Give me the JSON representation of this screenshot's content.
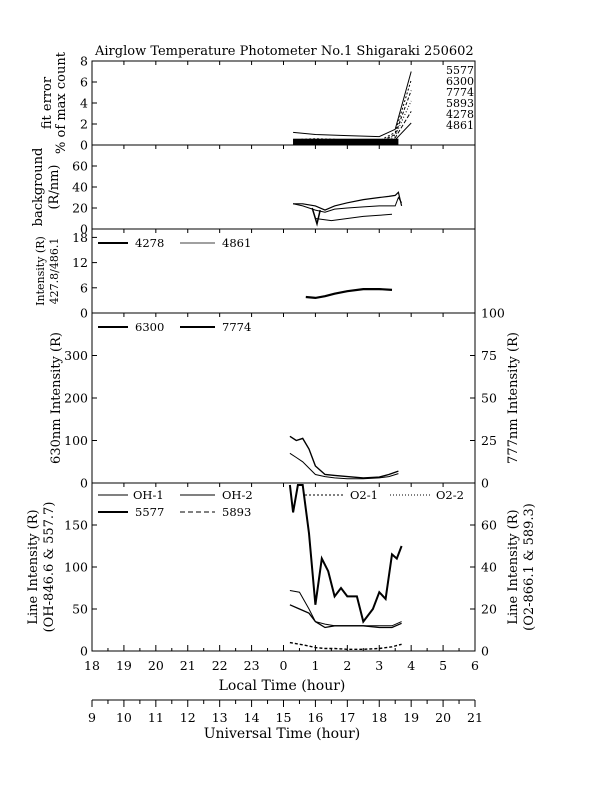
{
  "title": "Airglow Temperature Photometer No.1  Shigaraki  250602",
  "x_axis": {
    "local_label": "Local Time (hour)",
    "local_ticks": [
      "18",
      "19",
      "20",
      "21",
      "22",
      "23",
      "0",
      "1",
      "2",
      "3",
      "4",
      "5",
      "6"
    ],
    "ut_label": "Universal Time (hour)",
    "ut_ticks": [
      "9",
      "10",
      "11",
      "12",
      "13",
      "14",
      "15",
      "16",
      "17",
      "18",
      "19",
      "20",
      "21"
    ]
  },
  "chart_data": [
    {
      "type": "line",
      "panel": "fit-error",
      "ylabel_lines": [
        "fit error",
        "% of max count"
      ],
      "ylim": [
        0,
        8
      ],
      "yticks": [
        "0",
        "2",
        "4",
        "6",
        "8"
      ],
      "series_labels": [
        "5577",
        "6300",
        "7774",
        "5893",
        "4278",
        "4861"
      ],
      "series": [
        {
          "name": "5577",
          "x": [
            24.3,
            25.0,
            26.0,
            27.0,
            27.5,
            28.0
          ],
          "values": [
            1.2,
            1.0,
            0.9,
            0.8,
            1.5,
            7.0
          ]
        },
        {
          "name": "6300",
          "x": [
            24.3,
            25.0,
            26.0,
            27.0,
            27.5,
            28.0
          ],
          "values": [
            0.5,
            0.6,
            0.5,
            0.4,
            1.2,
            6.2
          ]
        },
        {
          "name": "7774",
          "x": [
            24.3,
            25.0,
            26.0,
            27.0,
            27.5,
            28.0
          ],
          "values": [
            0.4,
            0.5,
            0.4,
            0.3,
            1.0,
            5.2
          ]
        },
        {
          "name": "5893",
          "x": [
            24.3,
            25.0,
            26.0,
            27.0,
            27.5,
            28.0
          ],
          "values": [
            0.3,
            0.3,
            0.3,
            0.3,
            0.9,
            4.2
          ]
        },
        {
          "name": "4278",
          "x": [
            24.3,
            25.0,
            26.0,
            27.0,
            27.5,
            28.0
          ],
          "values": [
            0.2,
            0.2,
            0.2,
            0.2,
            0.7,
            3.2
          ]
        },
        {
          "name": "4861",
          "x": [
            24.3,
            25.0,
            26.0,
            27.0,
            27.5,
            28.0
          ],
          "values": [
            0.1,
            0.1,
            0.1,
            0.1,
            0.5,
            2.1
          ]
        }
      ]
    },
    {
      "type": "line",
      "panel": "background",
      "ylabel_lines": [
        "background",
        "(R/nm)"
      ],
      "ylim": [
        0,
        80
      ],
      "yticks": [
        "0",
        "20",
        "40",
        "60"
      ],
      "series": [
        {
          "x": [
            24.3,
            24.6,
            25.0,
            25.3,
            25.6,
            26.0,
            26.5,
            27.0,
            27.3,
            27.5,
            27.6,
            27.7
          ],
          "values": [
            24,
            24,
            22,
            18,
            22,
            25,
            28,
            30,
            31,
            32,
            35,
            22
          ]
        },
        {
          "x": [
            24.3,
            24.6,
            25.0,
            25.3,
            25.6,
            26.0,
            26.5,
            27.0,
            27.3,
            27.5,
            27.6,
            27.7
          ],
          "values": [
            24,
            22,
            18,
            16,
            19,
            20,
            21,
            22,
            22,
            22,
            30,
            25
          ]
        },
        {
          "x": [
            25.0,
            25.5,
            26.0,
            26.5,
            27.0,
            27.4
          ],
          "values": [
            10,
            8,
            10,
            12,
            13,
            14
          ]
        }
      ]
    },
    {
      "type": "line",
      "panel": "intensity-ratio",
      "ylabel_lines": [
        "Intensity (R)",
        "427.8/486.1"
      ],
      "ylim": [
        0,
        20
      ],
      "yticks": [
        "0",
        "6",
        "12",
        "18"
      ],
      "legend": [
        "4278",
        "4861"
      ],
      "series": [
        {
          "x": [
            24.7,
            25.0,
            25.3,
            25.6,
            26.0,
            26.5,
            27.0,
            27.4
          ],
          "values": [
            3.8,
            3.6,
            4.0,
            4.6,
            5.2,
            5.7,
            5.7,
            5.5
          ]
        }
      ]
    },
    {
      "type": "line",
      "panel": "630-777",
      "ylabel_left": "630nm Intensity (R)",
      "ylabel_right": "777nm Intensity (R)",
      "ylim_left": [
        0,
        400
      ],
      "ylim_right": [
        0,
        100
      ],
      "yticks_left": [
        "0",
        "100",
        "200",
        "300"
      ],
      "yticks_right": [
        "0",
        "25",
        "50",
        "75",
        "100"
      ],
      "legend": [
        "6300",
        "7774"
      ],
      "series": [
        {
          "name": "6300",
          "x": [
            24.2,
            24.4,
            24.6,
            24.8,
            25.0,
            25.3,
            25.6,
            26.0,
            26.5,
            27.0,
            27.3,
            27.6
          ],
          "values": [
            110,
            100,
            105,
            80,
            40,
            20,
            18,
            15,
            12,
            14,
            20,
            28
          ]
        },
        {
          "name": "7774",
          "x": [
            24.2,
            24.4,
            24.6,
            24.8,
            25.0,
            25.3,
            25.6,
            26.0,
            26.5,
            27.0,
            27.3,
            27.6
          ],
          "values": [
            70,
            60,
            50,
            35,
            20,
            15,
            12,
            10,
            10,
            12,
            15,
            22
          ]
        }
      ]
    },
    {
      "type": "line",
      "panel": "line-intensity",
      "ylabel_left_lines": [
        "Line Intensity (R)",
        "(OH-846.6 & 557.7)"
      ],
      "ylabel_right_lines": [
        "Line Intensity (R)",
        "(O2-866.1 & 589.3)"
      ],
      "ylim_left": [
        0,
        200
      ],
      "ylim_right": [
        0,
        80
      ],
      "yticks_left": [
        "0",
        "50",
        "100",
        "150"
      ],
      "yticks_right": [
        "0",
        "20",
        "40",
        "60"
      ],
      "legend": [
        "OH-1",
        "OH-2",
        "O2-1",
        "O2-2",
        "5577",
        "5893"
      ],
      "series": [
        {
          "name": "5577",
          "x": [
            24.2,
            24.3,
            24.45,
            24.6,
            24.8,
            25.0,
            25.2,
            25.4,
            25.6,
            25.8,
            26.0,
            26.3,
            26.5,
            26.8,
            27.0,
            27.2,
            27.4,
            27.55,
            27.7
          ],
          "values": [
            200,
            165,
            200,
            205,
            140,
            55,
            110,
            95,
            65,
            75,
            65,
            65,
            35,
            50,
            70,
            62,
            115,
            110,
            125
          ]
        },
        {
          "name": "OH-1",
          "x": [
            24.2,
            24.5,
            24.8,
            25.0,
            25.3,
            25.6,
            26.0,
            26.5,
            27.0,
            27.4,
            27.7
          ],
          "values": [
            55,
            50,
            45,
            35,
            28,
            30,
            30,
            30,
            28,
            28,
            33
          ]
        },
        {
          "name": "OH-2",
          "x": [
            24.2,
            24.5,
            24.8,
            25.0,
            25.3,
            25.6,
            26.0,
            26.5,
            27.0,
            27.4,
            27.7
          ],
          "values": [
            72,
            70,
            50,
            35,
            32,
            30,
            30,
            30,
            30,
            30,
            35
          ]
        },
        {
          "name": "5893",
          "x": [
            24.2,
            24.5,
            24.8,
            25.0,
            25.3,
            25.6,
            26.0,
            26.5,
            27.0,
            27.4,
            27.7
          ],
          "values": [
            10,
            8,
            6,
            4,
            3,
            3,
            2,
            2,
            3,
            5,
            8
          ]
        }
      ]
    }
  ]
}
